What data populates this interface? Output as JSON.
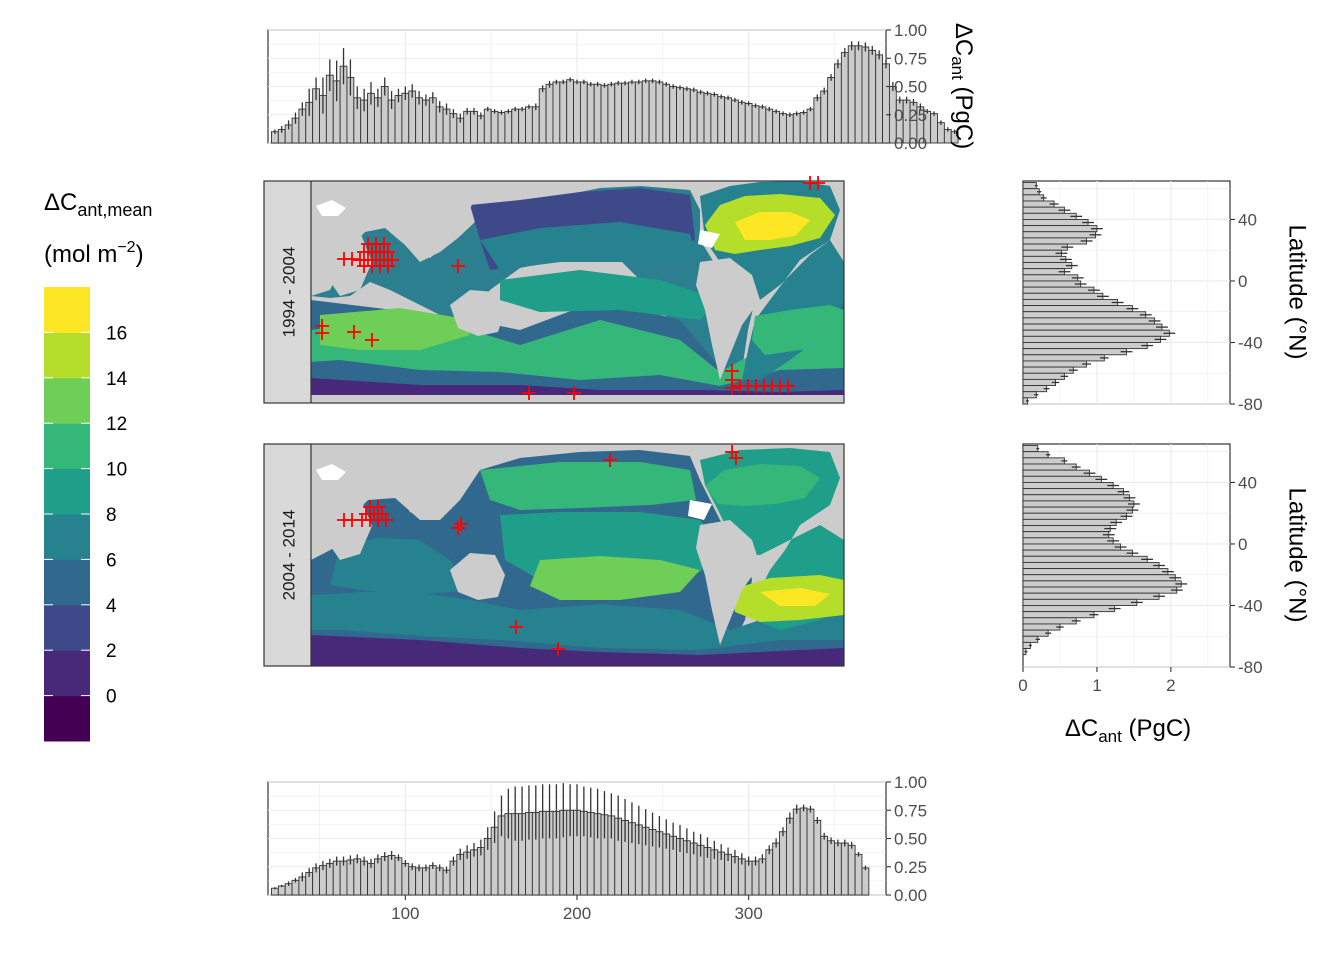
{
  "chart_data": [
    {
      "type": "bar",
      "panel": "top zonal-longitude histogram",
      "ylabel_main": "ΔC",
      "ylabel_sub": "ant",
      "ylabel_unit": " (PgC)",
      "ylim": [
        0,
        1.0
      ],
      "xlim": [
        20,
        380
      ],
      "yticks": [
        "0.00",
        "0.25",
        "0.50",
        "0.75",
        "1.00"
      ],
      "bin_width": 4,
      "x_start": 22,
      "values": [
        0.1,
        0.12,
        0.16,
        0.22,
        0.3,
        0.36,
        0.48,
        0.42,
        0.6,
        0.55,
        0.68,
        0.58,
        0.4,
        0.38,
        0.44,
        0.4,
        0.5,
        0.38,
        0.42,
        0.44,
        0.46,
        0.4,
        0.38,
        0.4,
        0.32,
        0.3,
        0.26,
        0.22,
        0.28,
        0.28,
        0.24,
        0.3,
        0.28,
        0.27,
        0.28,
        0.3,
        0.3,
        0.32,
        0.32,
        0.48,
        0.52,
        0.54,
        0.54,
        0.56,
        0.54,
        0.54,
        0.52,
        0.52,
        0.51,
        0.52,
        0.53,
        0.53,
        0.54,
        0.54,
        0.55,
        0.55,
        0.54,
        0.52,
        0.5,
        0.49,
        0.48,
        0.47,
        0.45,
        0.44,
        0.43,
        0.41,
        0.4,
        0.38,
        0.36,
        0.35,
        0.33,
        0.32,
        0.3,
        0.28,
        0.26,
        0.25,
        0.26,
        0.27,
        0.3,
        0.4,
        0.46,
        0.58,
        0.7,
        0.8,
        0.86,
        0.86,
        0.85,
        0.82,
        0.78,
        0.7,
        0.5,
        0.38,
        0.38,
        0.36,
        0.32,
        0.28,
        0.26,
        0.18,
        0.12,
        0.1
      ],
      "errors": [
        0.02,
        0.03,
        0.04,
        0.05,
        0.06,
        0.12,
        0.1,
        0.16,
        0.14,
        0.18,
        0.16,
        0.16,
        0.1,
        0.1,
        0.1,
        0.08,
        0.08,
        0.08,
        0.06,
        0.06,
        0.06,
        0.06,
        0.05,
        0.05,
        0.05,
        0.05,
        0.04,
        0.04,
        0.03,
        0.03,
        0.03,
        0.02,
        0.02,
        0.02,
        0.02,
        0.02,
        0.02,
        0.02,
        0.03,
        0.03,
        0.03,
        0.02,
        0.02,
        0.02,
        0.02,
        0.02,
        0.02,
        0.02,
        0.02,
        0.02,
        0.02,
        0.02,
        0.02,
        0.02,
        0.02,
        0.02,
        0.02,
        0.02,
        0.02,
        0.02,
        0.02,
        0.02,
        0.02,
        0.02,
        0.02,
        0.02,
        0.02,
        0.02,
        0.02,
        0.02,
        0.02,
        0.02,
        0.02,
        0.02,
        0.02,
        0.02,
        0.02,
        0.02,
        0.02,
        0.03,
        0.03,
        0.03,
        0.04,
        0.04,
        0.04,
        0.04,
        0.04,
        0.04,
        0.04,
        0.04,
        0.04,
        0.03,
        0.03,
        0.03,
        0.03,
        0.02,
        0.02,
        0.02,
        0.02,
        0.02
      ]
    },
    {
      "type": "bar",
      "panel": "bottom zonal-longitude histogram",
      "ylim": [
        0,
        1.0
      ],
      "xlim": [
        20,
        380
      ],
      "xticks": [
        "100",
        "200",
        "300"
      ],
      "yticks": [
        "0.00",
        "0.25",
        "0.50",
        "0.75",
        "1.00"
      ],
      "bin_width": 4,
      "x_start": 22,
      "values": [
        0.06,
        0.08,
        0.1,
        0.13,
        0.16,
        0.2,
        0.24,
        0.26,
        0.28,
        0.3,
        0.3,
        0.31,
        0.32,
        0.3,
        0.28,
        0.32,
        0.34,
        0.35,
        0.33,
        0.28,
        0.25,
        0.24,
        0.24,
        0.26,
        0.24,
        0.22,
        0.3,
        0.36,
        0.38,
        0.4,
        0.42,
        0.5,
        0.6,
        0.7,
        0.72,
        0.72,
        0.72,
        0.73,
        0.73,
        0.74,
        0.74,
        0.74,
        0.75,
        0.75,
        0.75,
        0.74,
        0.73,
        0.72,
        0.71,
        0.7,
        0.68,
        0.66,
        0.64,
        0.62,
        0.6,
        0.58,
        0.56,
        0.54,
        0.52,
        0.5,
        0.48,
        0.46,
        0.44,
        0.42,
        0.4,
        0.38,
        0.36,
        0.34,
        0.32,
        0.3,
        0.3,
        0.32,
        0.4,
        0.46,
        0.56,
        0.68,
        0.76,
        0.77,
        0.76,
        0.66,
        0.52,
        0.48,
        0.46,
        0.46,
        0.44,
        0.36,
        0.24
      ],
      "errors": [
        0.01,
        0.01,
        0.02,
        0.02,
        0.04,
        0.04,
        0.04,
        0.04,
        0.04,
        0.04,
        0.04,
        0.04,
        0.04,
        0.04,
        0.04,
        0.04,
        0.04,
        0.04,
        0.03,
        0.03,
        0.03,
        0.03,
        0.03,
        0.03,
        0.03,
        0.03,
        0.04,
        0.05,
        0.06,
        0.06,
        0.07,
        0.1,
        0.14,
        0.18,
        0.22,
        0.24,
        0.24,
        0.24,
        0.24,
        0.24,
        0.24,
        0.24,
        0.24,
        0.23,
        0.23,
        0.22,
        0.22,
        0.22,
        0.21,
        0.2,
        0.2,
        0.19,
        0.18,
        0.17,
        0.16,
        0.15,
        0.14,
        0.13,
        0.12,
        0.12,
        0.11,
        0.1,
        0.1,
        0.09,
        0.08,
        0.07,
        0.06,
        0.06,
        0.05,
        0.04,
        0.04,
        0.04,
        0.04,
        0.04,
        0.04,
        0.05,
        0.04,
        0.03,
        0.03,
        0.03,
        0.03,
        0.03,
        0.03,
        0.03,
        0.03,
        0.02,
        0.02
      ]
    },
    {
      "type": "bar",
      "orientation": "horizontal",
      "panel": "right latitude histogram 1994 - 2004",
      "ylabel": "Latitude (°N)",
      "ylim": [
        -80,
        65
      ],
      "xlim": [
        0,
        2.8
      ],
      "yticks": [
        "-80",
        "-40",
        "0",
        "40"
      ],
      "ytick_values": [
        -80,
        -40,
        0,
        40
      ],
      "bin_height": 4,
      "lat_start": 64,
      "values": [
        0.18,
        0.22,
        0.28,
        0.42,
        0.56,
        0.72,
        0.88,
        1.0,
        0.98,
        0.86,
        0.6,
        0.52,
        0.58,
        0.66,
        0.56,
        0.74,
        0.78,
        0.96,
        1.08,
        1.28,
        1.48,
        1.66,
        1.78,
        1.88,
        1.98,
        1.86,
        1.68,
        1.4,
        1.1,
        0.86,
        0.68,
        0.56,
        0.44,
        0.32,
        0.18,
        0.06
      ],
      "errors": [
        0.02,
        0.03,
        0.04,
        0.06,
        0.08,
        0.08,
        0.08,
        0.08,
        0.08,
        0.08,
        0.08,
        0.08,
        0.08,
        0.08,
        0.08,
        0.08,
        0.08,
        0.08,
        0.08,
        0.08,
        0.08,
        0.08,
        0.08,
        0.08,
        0.08,
        0.08,
        0.08,
        0.08,
        0.06,
        0.06,
        0.06,
        0.05,
        0.05,
        0.04,
        0.03,
        0.02
      ]
    },
    {
      "type": "bar",
      "orientation": "horizontal",
      "panel": "right latitude histogram 2004 - 2014",
      "ylabel": "Latitude (°N)",
      "xlabel_main": "ΔC",
      "xlabel_sub": "ant",
      "xlabel_unit": " (PgC)",
      "ylim": [
        -80,
        65
      ],
      "xlim": [
        0,
        2.8
      ],
      "xticks": [
        "0",
        "1",
        "2"
      ],
      "xtick_values": [
        0,
        1,
        2
      ],
      "yticks": [
        "-80",
        "-40",
        "0",
        "40"
      ],
      "ytick_values": [
        -80,
        -40,
        0,
        40
      ],
      "bin_height": 4,
      "lat_start": 64,
      "values": [
        0.2,
        0.34,
        0.56,
        0.72,
        0.9,
        1.06,
        1.22,
        1.36,
        1.44,
        1.5,
        1.48,
        1.4,
        1.26,
        1.18,
        1.16,
        1.22,
        1.32,
        1.48,
        1.68,
        1.84,
        1.96,
        2.06,
        2.14,
        2.08,
        1.84,
        1.54,
        1.24,
        0.96,
        0.72,
        0.5,
        0.34,
        0.2,
        0.1,
        0.04
      ],
      "errors": [
        0.02,
        0.03,
        0.04,
        0.06,
        0.08,
        0.08,
        0.08,
        0.08,
        0.08,
        0.08,
        0.08,
        0.08,
        0.08,
        0.08,
        0.08,
        0.08,
        0.08,
        0.08,
        0.08,
        0.08,
        0.08,
        0.08,
        0.08,
        0.08,
        0.08,
        0.08,
        0.08,
        0.06,
        0.06,
        0.05,
        0.04,
        0.03,
        0.02,
        0.02
      ]
    },
    {
      "type": "heatmap",
      "panel": "maps",
      "facets": [
        "1994 - 2004",
        "2004 - 2014"
      ],
      "legend_title_main": "ΔC",
      "legend_title_sub": "ant,mean",
      "legend_unit_open": "(mol m",
      "legend_unit_sup": "−2",
      "legend_unit_close": ")",
      "legend_labels": [
        "0",
        "2",
        "4",
        "6",
        "8",
        "10",
        "12",
        "14",
        "16"
      ],
      "legend_colors": [
        "#440154",
        "#482878",
        "#3e4989",
        "#31688e",
        "#26828e",
        "#1f9e89",
        "#35b779",
        "#6ece58",
        "#b5de2b",
        "#fde725"
      ],
      "marker": "+",
      "marker_color": "#ff0000",
      "land_color": "#cccccc",
      "missing_color": "#ffffff"
    }
  ]
}
